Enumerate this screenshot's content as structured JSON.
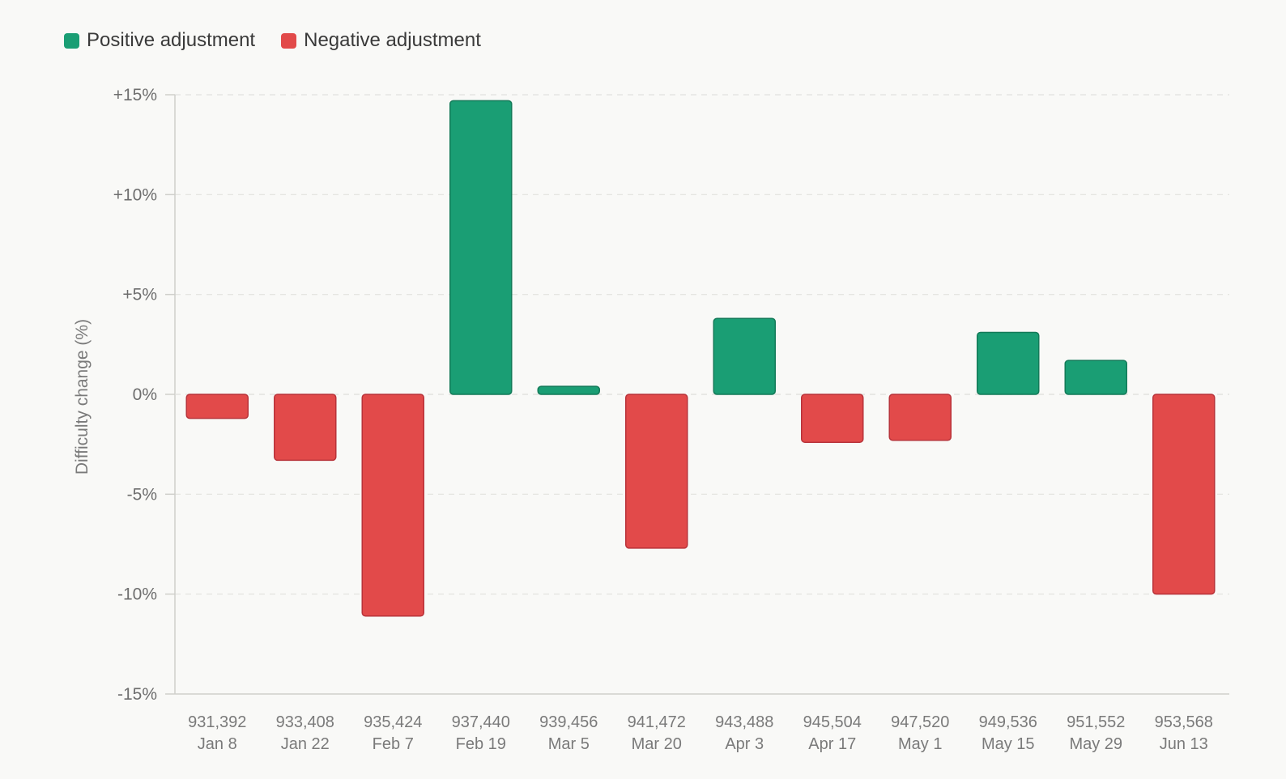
{
  "legend": {
    "positive_label": "Positive adjustment",
    "negative_label": "Negative adjustment"
  },
  "colors": {
    "positive": "#1a9e74",
    "positive_stroke": "#137a58",
    "negative": "#e24a4a",
    "negative_stroke": "#b8333a",
    "grid": "#e2e2de",
    "axis": "#cfcfcb"
  },
  "chart_data": {
    "type": "bar",
    "ylabel": "Difficulty change (%)",
    "ylim": [
      -15,
      15
    ],
    "yticks": [
      15,
      10,
      5,
      0,
      -5,
      -10,
      -15
    ],
    "ytick_labels": [
      "+15%",
      "+10%",
      "+5%",
      "0%",
      "-5%",
      "-10%",
      "-15%"
    ],
    "grid": true,
    "legend_position": "top-left",
    "series": [
      {
        "name": "Positive adjustment"
      },
      {
        "name": "Negative adjustment"
      }
    ],
    "categories": [
      {
        "block": "931,392",
        "date": "Jan 8"
      },
      {
        "block": "933,408",
        "date": "Jan 22"
      },
      {
        "block": "935,424",
        "date": "Feb 7"
      },
      {
        "block": "937,440",
        "date": "Feb 19"
      },
      {
        "block": "939,456",
        "date": "Mar 5"
      },
      {
        "block": "941,472",
        "date": "Mar 20"
      },
      {
        "block": "943,488",
        "date": "Apr 3"
      },
      {
        "block": "945,504",
        "date": "Apr 17"
      },
      {
        "block": "947,520",
        "date": "May 1"
      },
      {
        "block": "949,536",
        "date": "May 15"
      },
      {
        "block": "951,552",
        "date": "May 29"
      },
      {
        "block": "953,568",
        "date": "Jun 13"
      }
    ],
    "values": [
      -1.2,
      -3.3,
      -11.1,
      14.7,
      0.4,
      -7.7,
      3.8,
      -2.4,
      -2.3,
      3.1,
      1.7,
      -10.0
    ]
  }
}
